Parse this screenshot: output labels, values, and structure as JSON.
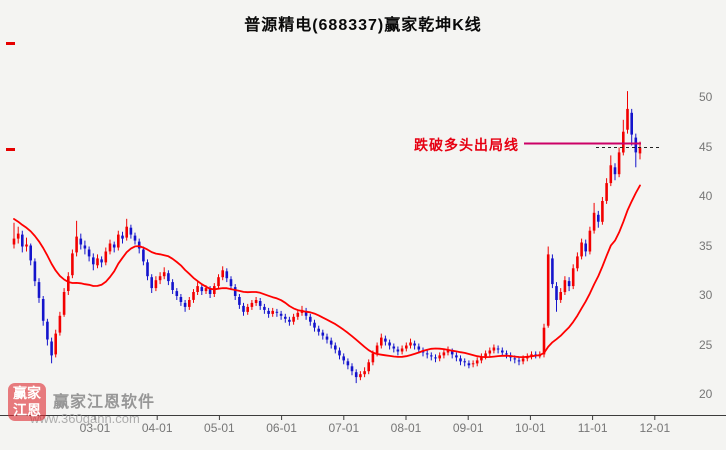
{
  "title": "普源精电(688337)赢家乾坤K线",
  "watermark": {
    "logo_line1": "赢家",
    "logo_line2": "江恩",
    "name": "赢家江恩软件",
    "url": "www.360gann.com"
  },
  "colors": {
    "background": "#f4f4f2",
    "up": "#f20000",
    "down": "#1414cc",
    "ma": "#ff0000",
    "exit_line": "#cc0066",
    "dashed_line": "#222222",
    "axis_line": "#3c3c3c",
    "axis_text": "#767676",
    "annotation_text": "#e60012"
  },
  "chart_data": {
    "type": "candlestick",
    "name": "普源精电",
    "symbol": "688337",
    "title": "普源精电(688337)赢家乾坤K线",
    "x_axis_labels": [
      "03-01",
      "04-01",
      "05-01",
      "06-01",
      "07-01",
      "08-01",
      "09-01",
      "10-01",
      "11-01",
      "12-01"
    ],
    "y_axis_values": [
      50,
      45,
      40,
      35,
      30,
      25,
      20
    ],
    "ylim": [
      20,
      50
    ],
    "legend": "none",
    "grid": false,
    "exit_line": {
      "label": "跌破多头出局线",
      "price": 45.4
    },
    "dashed_level": {
      "price": 45.0
    },
    "ma": {
      "period": 16,
      "lead_in_closes": [
        41.0,
        40.6,
        40.2,
        39.8,
        39.4,
        39.0,
        38.6,
        38.2,
        37.8,
        37.4,
        37.0,
        36.6,
        36.3,
        36.0,
        35.9,
        35.8
      ]
    },
    "candles": [
      [
        35.2,
        37.4,
        34.8,
        35.8
      ],
      [
        35.8,
        37.0,
        35.3,
        36.3
      ],
      [
        36.2,
        36.6,
        34.4,
        35.0
      ],
      [
        35.0,
        35.9,
        34.5,
        35.2
      ],
      [
        35.1,
        35.3,
        33.1,
        33.6
      ],
      [
        33.5,
        33.8,
        31.0,
        31.5
      ],
      [
        31.4,
        31.8,
        29.3,
        29.8
      ],
      [
        29.7,
        30.0,
        27.0,
        27.5
      ],
      [
        27.4,
        27.7,
        25.0,
        25.6
      ],
      [
        25.4,
        25.8,
        23.2,
        24.0
      ],
      [
        24.1,
        26.6,
        23.8,
        26.2
      ],
      [
        26.3,
        28.4,
        26.0,
        28.0
      ],
      [
        28.1,
        30.8,
        27.9,
        30.4
      ],
      [
        30.5,
        32.4,
        30.1,
        32.0
      ],
      [
        32.1,
        34.7,
        31.8,
        34.3
      ],
      [
        34.4,
        37.6,
        34.0,
        36.0
      ],
      [
        35.8,
        36.3,
        34.7,
        35.2
      ],
      [
        35.1,
        35.6,
        34.2,
        34.8
      ],
      [
        34.7,
        35.0,
        33.5,
        34.0
      ],
      [
        33.9,
        34.3,
        32.6,
        33.2
      ],
      [
        33.1,
        34.2,
        32.8,
        33.8
      ],
      [
        33.7,
        34.0,
        32.9,
        33.4
      ],
      [
        33.4,
        34.9,
        33.1,
        34.5
      ],
      [
        34.5,
        35.7,
        34.2,
        35.3
      ],
      [
        35.2,
        35.5,
        34.4,
        34.9
      ],
      [
        34.9,
        36.6,
        34.6,
        36.2
      ],
      [
        36.1,
        36.5,
        35.3,
        35.8
      ],
      [
        35.9,
        37.8,
        35.6,
        37.0
      ],
      [
        36.9,
        37.2,
        35.8,
        36.2
      ],
      [
        36.1,
        36.4,
        35.2,
        35.6
      ],
      [
        35.5,
        35.8,
        34.3,
        34.8
      ],
      [
        34.7,
        35.0,
        33.1,
        33.5
      ],
      [
        33.4,
        33.7,
        31.6,
        32.0
      ],
      [
        31.9,
        32.2,
        30.3,
        30.8
      ],
      [
        30.8,
        32.0,
        30.5,
        31.6
      ],
      [
        31.6,
        32.4,
        31.2,
        32.0
      ],
      [
        32.0,
        32.9,
        31.7,
        32.4
      ],
      [
        32.3,
        32.6,
        31.1,
        31.5
      ],
      [
        31.4,
        31.7,
        30.2,
        30.6
      ],
      [
        30.5,
        30.8,
        29.6,
        30.0
      ],
      [
        29.9,
        30.2,
        29.0,
        29.4
      ],
      [
        29.3,
        29.6,
        28.4,
        28.9
      ],
      [
        28.9,
        29.9,
        28.6,
        29.6
      ],
      [
        29.6,
        30.7,
        29.3,
        30.4
      ],
      [
        30.4,
        31.4,
        30.1,
        31.0
      ],
      [
        30.9,
        31.2,
        30.1,
        30.5
      ],
      [
        30.5,
        31.1,
        30.2,
        30.8
      ],
      [
        30.7,
        31.0,
        29.8,
        30.2
      ],
      [
        30.2,
        31.3,
        29.9,
        31.0
      ],
      [
        31.0,
        32.2,
        30.7,
        31.9
      ],
      [
        31.9,
        33.0,
        31.6,
        32.6
      ],
      [
        32.5,
        32.8,
        31.4,
        31.8
      ],
      [
        31.7,
        32.0,
        30.6,
        31.0
      ],
      [
        30.9,
        31.2,
        29.6,
        30.0
      ],
      [
        29.9,
        30.2,
        28.7,
        29.1
      ],
      [
        29.0,
        29.3,
        28.0,
        28.4
      ],
      [
        28.4,
        29.2,
        28.1,
        28.9
      ],
      [
        28.9,
        29.6,
        28.6,
        29.3
      ],
      [
        29.3,
        29.9,
        29.0,
        29.6
      ],
      [
        29.5,
        29.8,
        28.6,
        29.0
      ],
      [
        28.9,
        29.2,
        28.2,
        28.6
      ],
      [
        28.5,
        28.8,
        27.8,
        28.2
      ],
      [
        28.2,
        28.8,
        27.9,
        28.5
      ],
      [
        28.4,
        28.7,
        27.9,
        28.3
      ],
      [
        28.2,
        28.5,
        27.6,
        28.0
      ],
      [
        27.9,
        28.2,
        27.3,
        27.7
      ],
      [
        27.6,
        27.9,
        27.0,
        27.4
      ],
      [
        27.4,
        28.2,
        27.1,
        27.9
      ],
      [
        27.9,
        28.6,
        27.6,
        28.3
      ],
      [
        28.3,
        29.0,
        28.0,
        28.6
      ],
      [
        28.5,
        28.8,
        27.6,
        28.0
      ],
      [
        27.9,
        28.2,
        27.0,
        27.4
      ],
      [
        27.3,
        27.6,
        26.4,
        26.8
      ],
      [
        26.7,
        27.0,
        26.0,
        26.4
      ],
      [
        26.3,
        26.6,
        25.6,
        26.0
      ],
      [
        25.9,
        26.2,
        25.2,
        25.6
      ],
      [
        25.5,
        25.8,
        24.7,
        25.1
      ],
      [
        25.0,
        25.3,
        24.2,
        24.6
      ],
      [
        24.5,
        24.8,
        23.6,
        24.0
      ],
      [
        23.9,
        24.2,
        23.1,
        23.5
      ],
      [
        23.4,
        23.7,
        22.6,
        23.0
      ],
      [
        22.9,
        23.2,
        22.0,
        22.4
      ],
      [
        22.3,
        22.6,
        21.2,
        21.8
      ],
      [
        21.8,
        22.4,
        21.5,
        22.1
      ],
      [
        22.1,
        22.8,
        21.8,
        22.4
      ],
      [
        22.4,
        23.6,
        22.1,
        23.3
      ],
      [
        23.3,
        24.5,
        23.0,
        24.2
      ],
      [
        24.2,
        25.3,
        23.9,
        25.0
      ],
      [
        25.0,
        26.2,
        24.7,
        25.8
      ],
      [
        25.7,
        26.0,
        25.0,
        25.4
      ],
      [
        25.3,
        25.6,
        24.6,
        25.0
      ],
      [
        24.9,
        25.2,
        24.3,
        24.7
      ],
      [
        24.6,
        24.9,
        24.0,
        24.4
      ],
      [
        24.4,
        25.0,
        24.1,
        24.7
      ],
      [
        24.7,
        25.3,
        24.4,
        25.0
      ],
      [
        25.0,
        25.7,
        24.7,
        25.3
      ],
      [
        25.2,
        25.5,
        24.6,
        25.0
      ],
      [
        24.9,
        25.2,
        24.2,
        24.6
      ],
      [
        24.5,
        24.8,
        23.9,
        24.3
      ],
      [
        24.2,
        24.5,
        23.7,
        24.1
      ],
      [
        24.0,
        24.3,
        23.5,
        23.9
      ],
      [
        23.8,
        24.1,
        23.3,
        23.7
      ],
      [
        23.7,
        24.3,
        23.4,
        24.0
      ],
      [
        24.0,
        24.6,
        23.7,
        24.3
      ],
      [
        24.3,
        24.9,
        24.0,
        24.5
      ],
      [
        24.4,
        24.7,
        23.7,
        24.1
      ],
      [
        24.0,
        24.3,
        23.4,
        23.8
      ],
      [
        23.7,
        24.0,
        23.0,
        23.4
      ],
      [
        23.4,
        23.7,
        22.9,
        23.3
      ],
      [
        23.2,
        23.5,
        22.7,
        23.0
      ],
      [
        23.1,
        23.5,
        22.8,
        23.2
      ],
      [
        23.2,
        23.8,
        22.9,
        23.5
      ],
      [
        23.5,
        24.2,
        23.2,
        23.9
      ],
      [
        23.9,
        24.5,
        23.6,
        24.2
      ],
      [
        24.2,
        24.8,
        23.9,
        24.5
      ],
      [
        24.5,
        25.1,
        24.2,
        24.8
      ],
      [
        24.7,
        25.0,
        24.2,
        24.6
      ],
      [
        24.5,
        24.8,
        23.9,
        24.3
      ],
      [
        24.2,
        24.5,
        23.7,
        24.1
      ],
      [
        24.0,
        24.3,
        23.4,
        23.8
      ],
      [
        23.7,
        24.0,
        23.2,
        23.6
      ],
      [
        23.5,
        23.8,
        23.0,
        23.4
      ],
      [
        23.4,
        24.0,
        23.1,
        23.7
      ],
      [
        23.7,
        24.2,
        23.4,
        23.9
      ],
      [
        23.9,
        24.4,
        23.6,
        24.1
      ],
      [
        24.1,
        24.4,
        23.7,
        24.0
      ],
      [
        23.9,
        24.4,
        23.7,
        24.1
      ],
      [
        24.1,
        27.2,
        23.8,
        26.8
      ],
      [
        27.0,
        35.0,
        26.8,
        34.2
      ],
      [
        33.8,
        34.2,
        30.8,
        31.2
      ],
      [
        31.0,
        31.4,
        28.4,
        29.6
      ],
      [
        29.6,
        30.8,
        29.3,
        30.4
      ],
      [
        30.4,
        32.0,
        30.1,
        31.6
      ],
      [
        31.5,
        31.9,
        30.5,
        31.0
      ],
      [
        31.0,
        33.2,
        30.7,
        32.8
      ],
      [
        32.8,
        34.4,
        32.5,
        34.0
      ],
      [
        34.0,
        35.8,
        33.7,
        35.4
      ],
      [
        35.3,
        35.7,
        34.0,
        34.5
      ],
      [
        34.5,
        37.0,
        34.2,
        36.6
      ],
      [
        36.6,
        39.4,
        36.3,
        38.4
      ],
      [
        38.2,
        38.6,
        36.9,
        37.5
      ],
      [
        37.5,
        40.0,
        37.2,
        39.6
      ],
      [
        39.6,
        41.9,
        39.3,
        41.4
      ],
      [
        41.4,
        44.2,
        41.1,
        43.2
      ],
      [
        43.0,
        43.4,
        41.7,
        42.3
      ],
      [
        42.3,
        45.0,
        42.0,
        44.5
      ],
      [
        44.5,
        47.8,
        44.2,
        46.6
      ],
      [
        46.8,
        50.7,
        46.4,
        48.9
      ],
      [
        48.5,
        48.9,
        45.2,
        46.3
      ],
      [
        46.0,
        46.4,
        43.0,
        44.5
      ],
      [
        44.4,
        45.6,
        43.8,
        45.0
      ]
    ]
  }
}
